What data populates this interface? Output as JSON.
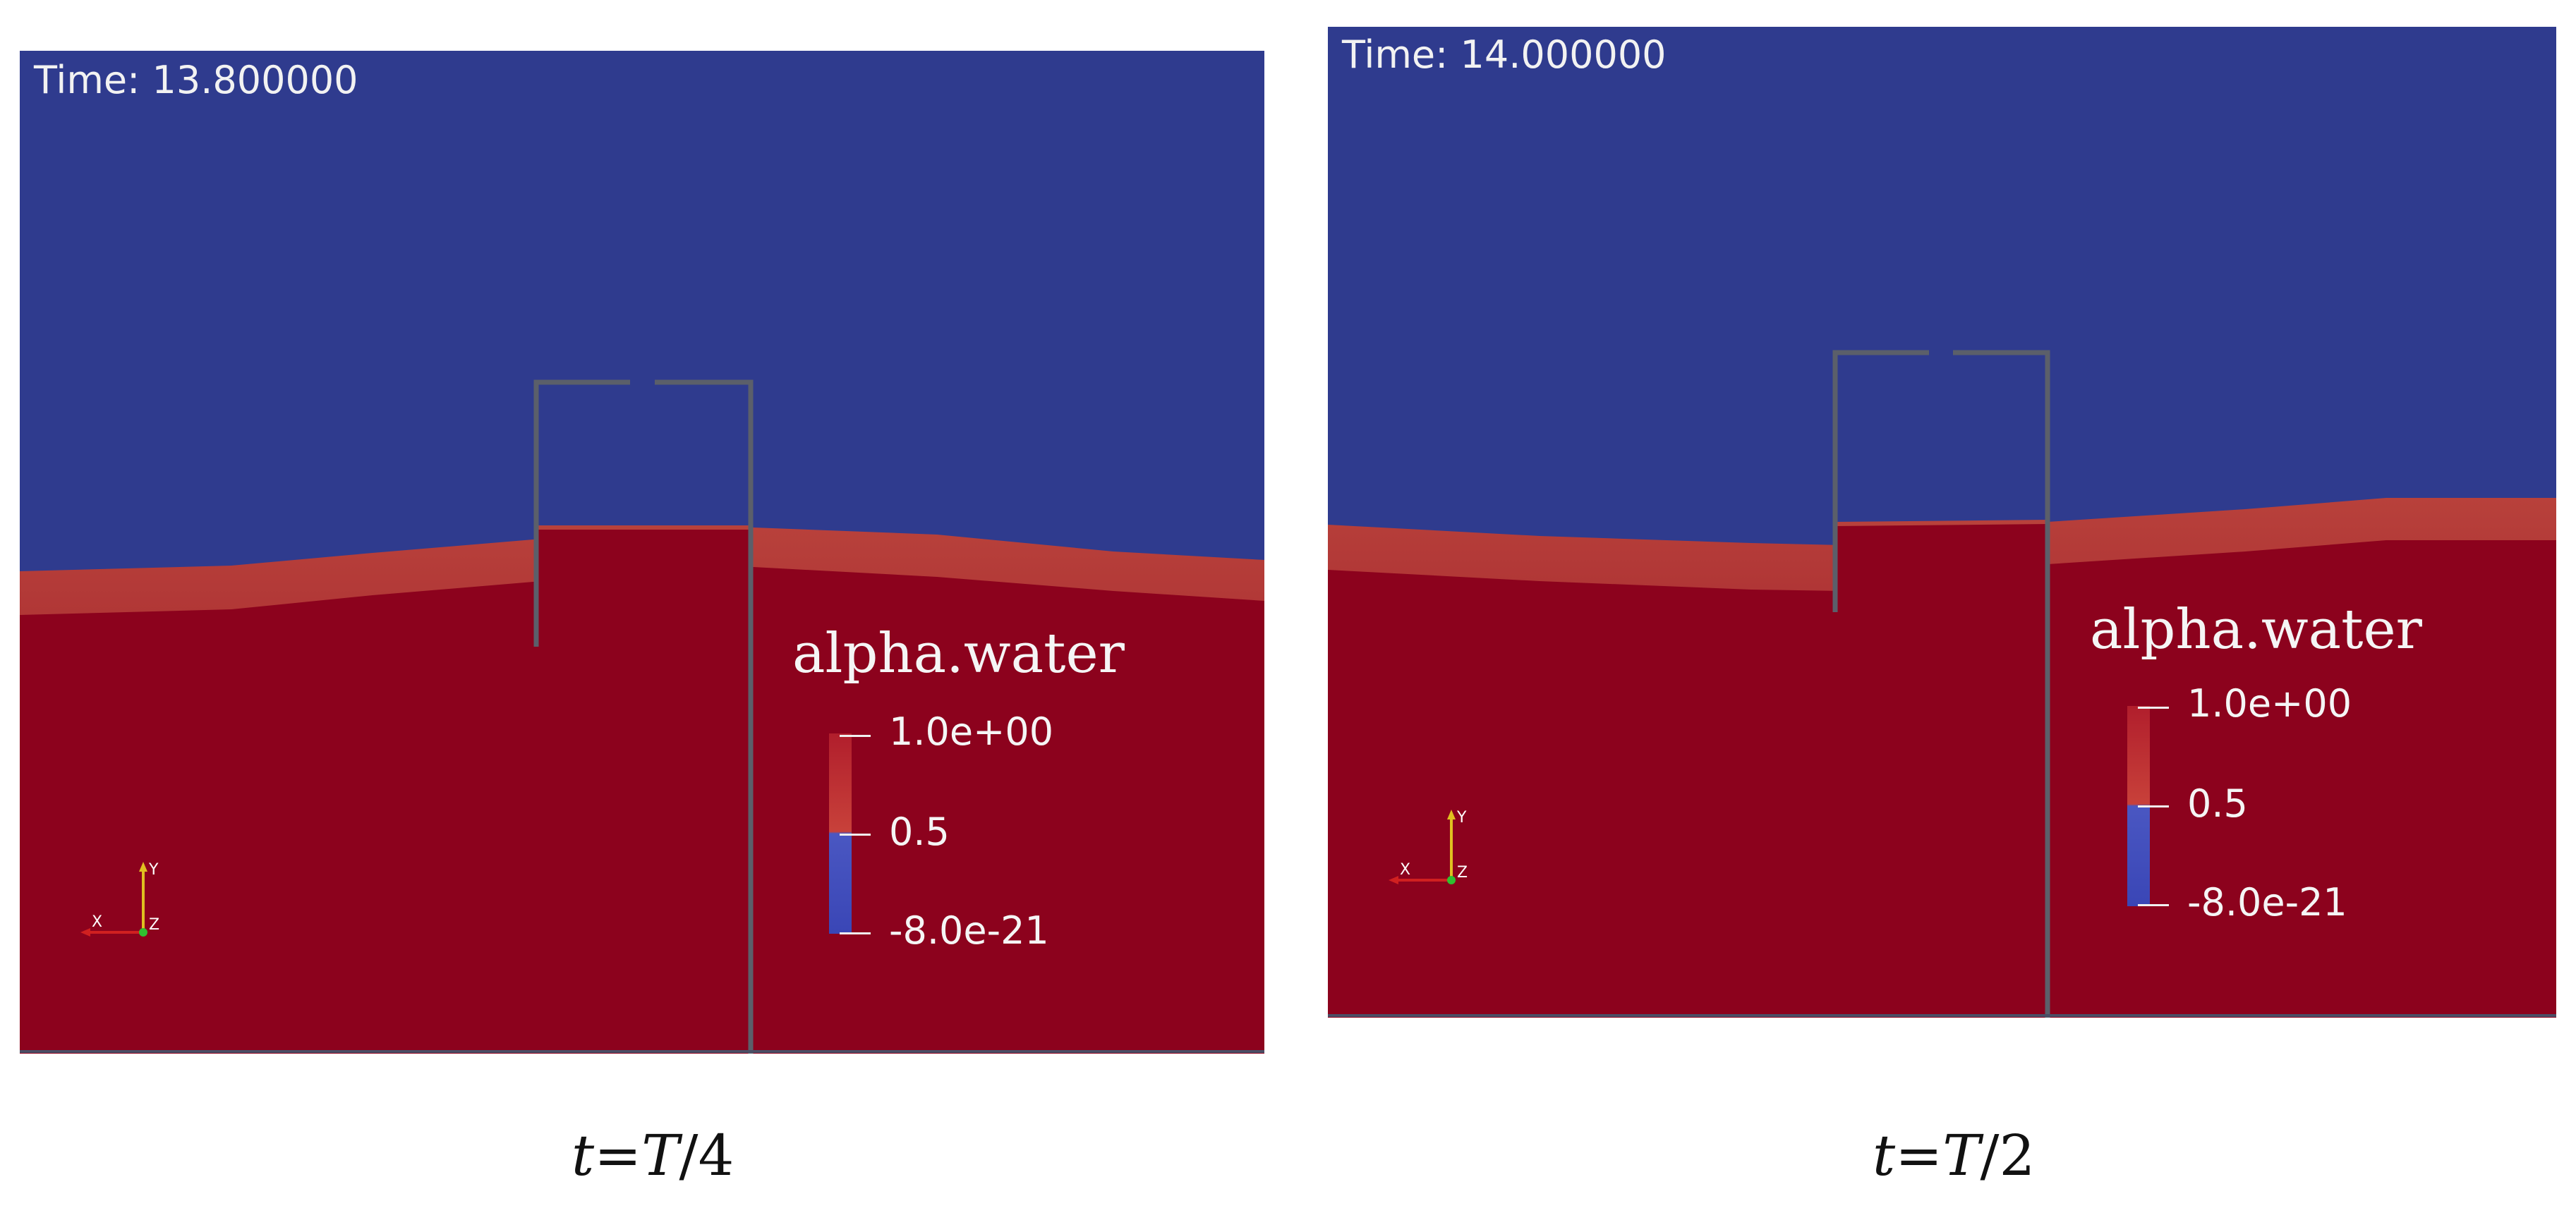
{
  "colors": {
    "air": "#2f3b8e",
    "water": "#8c021d",
    "interface": "#b83a3a",
    "structure": "#5b5f6a"
  },
  "panels": [
    {
      "time_label": "Time: 13.800000",
      "legend": {
        "title": "alpha.water",
        "max": "1.0e+00",
        "mid": "0.5",
        "min": "-8.0e-21"
      },
      "axes": {
        "x": "X",
        "y": "Y",
        "z": "Z"
      },
      "caption": {
        "var": "t",
        "eq": "=",
        "rhs": "T",
        "den": "/4"
      }
    },
    {
      "time_label": "Time: 14.000000",
      "legend": {
        "title": "alpha.water",
        "max": "1.0e+00",
        "mid": "0.5",
        "min": "-8.0e-21"
      },
      "axes": {
        "x": "X",
        "y": "Y",
        "z": "Z"
      },
      "caption": {
        "var": "t",
        "eq": "=",
        "rhs": "T",
        "den": "/2"
      }
    }
  ]
}
